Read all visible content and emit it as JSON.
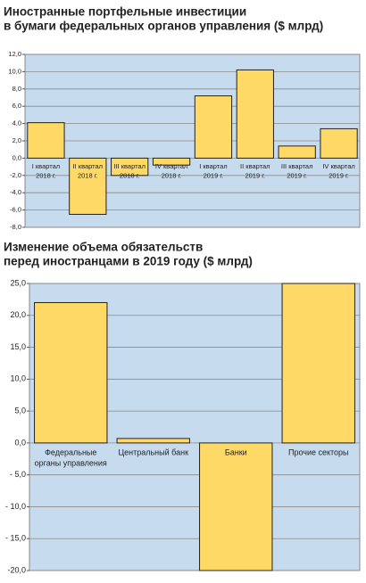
{
  "chart_data": [
    {
      "type": "bar",
      "title": [
        "Иностранные портфельные инвестиции",
        "в бумаги федеральных органов управления ($ млрд)"
      ],
      "categories": [
        [
          "I квартал",
          "2018 г."
        ],
        [
          "II квартал",
          "2018 г."
        ],
        [
          "III квартал",
          "2018 г."
        ],
        [
          "IV квартал",
          "2018 г."
        ],
        [
          "I квартал",
          "2019 г."
        ],
        [
          "II квартал",
          "2019 г."
        ],
        [
          "III квартал",
          "2019 г."
        ],
        [
          "IV квартал",
          "2019 г."
        ]
      ],
      "values": [
        4.1,
        -6.5,
        -2.0,
        -0.8,
        7.2,
        10.2,
        1.4,
        3.4
      ],
      "color": "#ffd966",
      "ylim": [
        -8,
        12
      ],
      "yticks": [
        {
          "value": 12,
          "label": "12,0"
        },
        {
          "value": 10,
          "label": "10,0"
        },
        {
          "value": 8,
          "label": "8,0"
        },
        {
          "value": 6,
          "label": "6,0"
        },
        {
          "value": 4,
          "label": "4,0"
        },
        {
          "value": 2,
          "label": "2,0"
        },
        {
          "value": 0,
          "label": "0,0"
        },
        {
          "value": -2,
          "label": "-2,0"
        },
        {
          "value": -4,
          "label": "-4,0"
        },
        {
          "value": -6,
          "label": "-6,0"
        },
        {
          "value": -8,
          "label": "-8,0"
        }
      ],
      "grid": true
    },
    {
      "type": "bar",
      "title": [
        "Изменение объема обязательств",
        "перед иностранцами в 2019 году ($ млрд)"
      ],
      "categories": [
        [
          "Федеральные",
          "органы управления"
        ],
        [
          "Центральный банк"
        ],
        [
          "Банки"
        ],
        [
          "Прочие секторы"
        ]
      ],
      "values": [
        22.0,
        0.7,
        -20.0,
        25.0
      ],
      "color": "#ffd966",
      "ylim": [
        -20,
        25
      ],
      "yticks": [
        {
          "value": 25,
          "label": "25,0"
        },
        {
          "value": 20,
          "label": "20,0"
        },
        {
          "value": 15,
          "label": "15,0"
        },
        {
          "value": 10,
          "label": "10,0"
        },
        {
          "value": 5,
          "label": "5,0"
        },
        {
          "value": 0,
          "label": "0,0"
        },
        {
          "value": -5,
          "label": "- 5,0"
        },
        {
          "value": -10,
          "label": "- 10,0"
        },
        {
          "value": -15,
          "label": "- 15,0"
        },
        {
          "value": -20,
          "label": "-20,0"
        }
      ],
      "grid": true
    }
  ]
}
